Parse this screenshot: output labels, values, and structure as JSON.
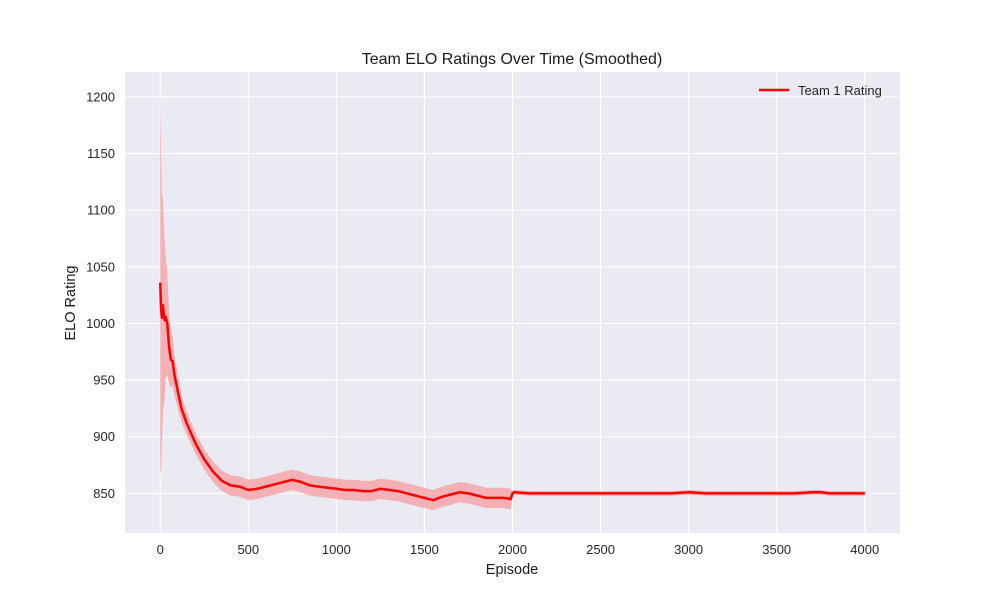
{
  "chart_data": {
    "type": "line",
    "title": "Team ELO Ratings Over Time (Smoothed)",
    "xlabel": "Episode",
    "ylabel": "ELO Rating",
    "xlim": [
      -200,
      4200
    ],
    "ylim": [
      815,
      1222
    ],
    "xticks": [
      0,
      500,
      1000,
      1500,
      2000,
      2500,
      3000,
      3500,
      4000
    ],
    "yticks": [
      850,
      900,
      950,
      1000,
      1050,
      1100,
      1150,
      1200
    ],
    "grid": true,
    "legend": {
      "placement": "top-right",
      "entries": [
        "Team 1 Rating"
      ]
    },
    "colors": {
      "plot_bg": "#eaeaf2",
      "grid": "#ffffff",
      "line": "#ff0000",
      "band": "#f4a6aa"
    },
    "series": [
      {
        "name": "Team 1 Rating",
        "x": [
          0,
          5,
          10,
          15,
          20,
          25,
          30,
          40,
          50,
          60,
          70,
          80,
          100,
          120,
          150,
          200,
          250,
          300,
          350,
          400,
          450,
          500,
          550,
          600,
          650,
          700,
          750,
          800,
          850,
          900,
          950,
          1000,
          1050,
          1100,
          1150,
          1200,
          1250,
          1300,
          1350,
          1400,
          1450,
          1500,
          1550,
          1600,
          1650,
          1700,
          1750,
          1800,
          1850,
          1900,
          1950,
          1990,
          2000,
          2010,
          2100,
          2200,
          2300,
          2400,
          2500,
          2600,
          2700,
          2800,
          2900,
          3000,
          3100,
          3200,
          3300,
          3400,
          3500,
          3600,
          3700,
          3750,
          3800,
          3900,
          4000
        ],
        "y": [
          1036,
          1012,
          1005,
          1016,
          1008,
          1003,
          1006,
          1000,
          980,
          968,
          967,
          955,
          940,
          925,
          912,
          894,
          880,
          869,
          861,
          857,
          856,
          853,
          854,
          856,
          858,
          860,
          862,
          860,
          857,
          856,
          855,
          854,
          853,
          853,
          852,
          852,
          854,
          853,
          852,
          850,
          848,
          846,
          844,
          847,
          849,
          851,
          850,
          848,
          846,
          846,
          846,
          845,
          850,
          851,
          850,
          850,
          850,
          850,
          850,
          850,
          850,
          850,
          850,
          851,
          850,
          850,
          850,
          850,
          850,
          850,
          851,
          851,
          850,
          850,
          850
        ],
        "band_halfwidth": [
          170,
          140,
          110,
          95,
          80,
          70,
          55,
          45,
          32,
          25,
          22,
          18,
          15,
          12,
          10,
          9,
          9,
          9,
          9,
          9,
          9,
          9,
          9,
          9,
          9,
          9,
          9,
          9,
          9,
          9,
          9,
          9,
          9,
          9,
          9,
          9,
          9,
          9,
          9,
          9,
          9,
          9,
          9,
          9,
          9,
          9,
          9,
          9,
          9,
          9,
          9,
          9,
          2,
          2,
          2,
          2,
          2,
          2,
          2,
          2,
          2,
          2,
          2,
          2,
          2,
          2,
          2,
          2,
          2,
          2,
          2,
          2,
          2,
          2,
          2
        ]
      }
    ]
  }
}
